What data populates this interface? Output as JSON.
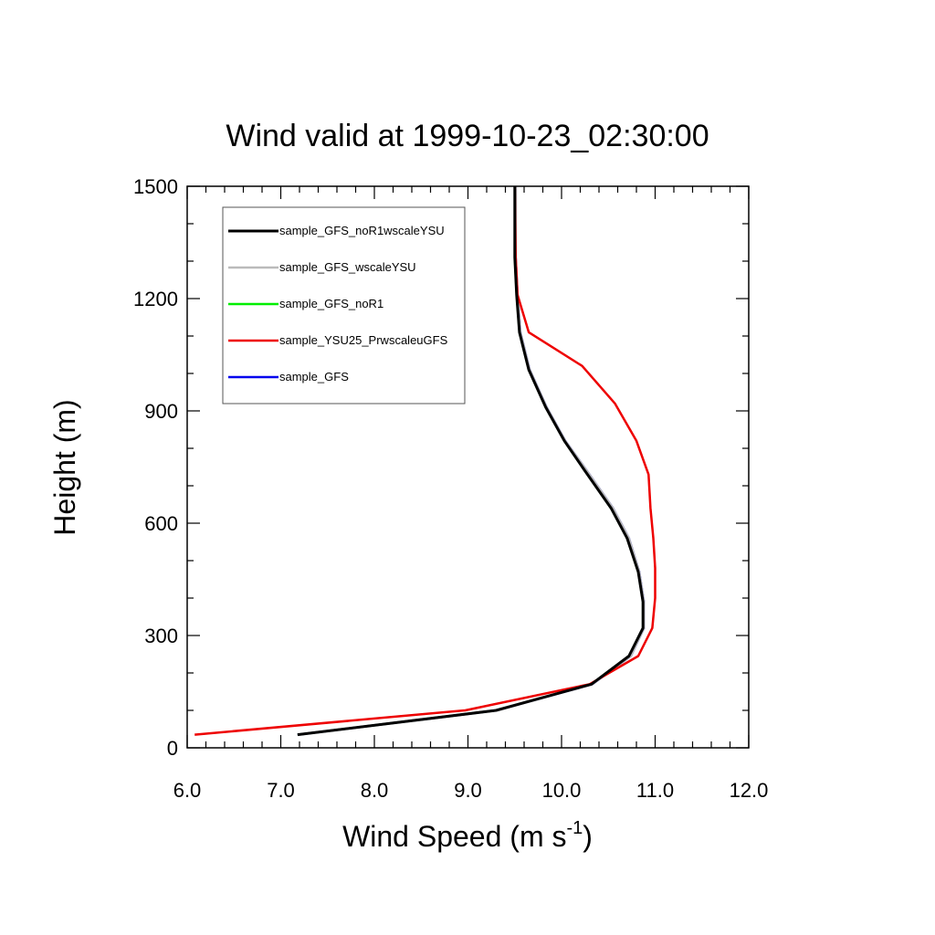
{
  "chart_data": {
    "type": "line",
    "title": "Wind valid at 1999-10-23_02:30:00",
    "xlabel": "Wind Speed (m s",
    "xlabel_sup": "-1",
    "xlabel_close": ")",
    "ylabel": "Height (m)",
    "xlim": [
      6.0,
      12.0
    ],
    "ylim": [
      0,
      1500
    ],
    "x_ticks": [
      6.0,
      7.0,
      8.0,
      9.0,
      10.0,
      11.0,
      12.0
    ],
    "x_tick_labels": [
      "6.0",
      "7.0",
      "8.0",
      "9.0",
      "10.0",
      "11.0",
      "12.0"
    ],
    "y_ticks": [
      0,
      300,
      600,
      900,
      1200,
      1500
    ],
    "y_tick_labels": [
      "0",
      "300",
      "600",
      "900",
      "1200",
      "1500"
    ],
    "grid": false,
    "legend_position": "top-left",
    "series": [
      {
        "name": "sample_GFS_noR1wscaleYSU",
        "color": "#000000",
        "points": [
          [
            7.18,
            35
          ],
          [
            9.3,
            100
          ],
          [
            10.32,
            170
          ],
          [
            10.72,
            245
          ],
          [
            10.87,
            320
          ],
          [
            10.87,
            390
          ],
          [
            10.82,
            470
          ],
          [
            10.7,
            560
          ],
          [
            10.53,
            640
          ],
          [
            10.25,
            740
          ],
          [
            10.03,
            820
          ],
          [
            9.83,
            910
          ],
          [
            9.65,
            1010
          ],
          [
            9.55,
            1110
          ],
          [
            9.52,
            1210
          ],
          [
            9.5,
            1310
          ],
          [
            9.5,
            1500
          ]
        ]
      },
      {
        "name": "sample_GFS_wscaleYSU",
        "color": "#bbbbbb",
        "points": [
          [
            7.18,
            35
          ],
          [
            9.3,
            100
          ],
          [
            10.33,
            170
          ],
          [
            10.74,
            245
          ],
          [
            10.88,
            320
          ],
          [
            10.88,
            390
          ],
          [
            10.83,
            470
          ],
          [
            10.72,
            560
          ],
          [
            10.55,
            640
          ],
          [
            10.27,
            740
          ],
          [
            10.04,
            820
          ],
          [
            9.84,
            910
          ],
          [
            9.66,
            1010
          ],
          [
            9.56,
            1110
          ],
          [
            9.53,
            1210
          ],
          [
            9.51,
            1310
          ],
          [
            9.51,
            1500
          ]
        ]
      },
      {
        "name": "sample_GFS_noR1",
        "color": "#00ee00",
        "points": [
          [
            7.18,
            35
          ],
          [
            9.3,
            100
          ],
          [
            10.32,
            170
          ],
          [
            10.72,
            245
          ],
          [
            10.87,
            320
          ],
          [
            10.87,
            390
          ],
          [
            10.82,
            470
          ],
          [
            10.7,
            560
          ],
          [
            10.53,
            640
          ],
          [
            10.25,
            740
          ],
          [
            10.03,
            820
          ],
          [
            9.83,
            910
          ],
          [
            9.65,
            1010
          ],
          [
            9.55,
            1110
          ],
          [
            9.52,
            1210
          ],
          [
            9.5,
            1310
          ],
          [
            9.5,
            1500
          ]
        ]
      },
      {
        "name": "sample_YSU25_PrwscaleuGFS",
        "color": "#ee0000",
        "points": [
          [
            6.08,
            35
          ],
          [
            8.97,
            100
          ],
          [
            10.3,
            170
          ],
          [
            10.82,
            245
          ],
          [
            10.97,
            320
          ],
          [
            11.0,
            400
          ],
          [
            11.0,
            480
          ],
          [
            10.98,
            560
          ],
          [
            10.95,
            640
          ],
          [
            10.93,
            730
          ],
          [
            10.8,
            820
          ],
          [
            10.57,
            920
          ],
          [
            10.22,
            1020
          ],
          [
            9.65,
            1110
          ],
          [
            9.53,
            1210
          ],
          [
            9.51,
            1310
          ],
          [
            9.5,
            1500
          ]
        ]
      },
      {
        "name": "sample_GFS",
        "color": "#0000ee",
        "points": [
          [
            7.18,
            35
          ],
          [
            9.3,
            100
          ],
          [
            10.33,
            170
          ],
          [
            10.74,
            245
          ],
          [
            10.88,
            320
          ],
          [
            10.88,
            390
          ],
          [
            10.83,
            470
          ],
          [
            10.72,
            560
          ],
          [
            10.55,
            640
          ],
          [
            10.27,
            740
          ],
          [
            10.04,
            820
          ],
          [
            9.84,
            910
          ],
          [
            9.66,
            1010
          ],
          [
            9.56,
            1110
          ],
          [
            9.53,
            1210
          ],
          [
            9.51,
            1310
          ],
          [
            9.51,
            1500
          ]
        ]
      }
    ]
  }
}
